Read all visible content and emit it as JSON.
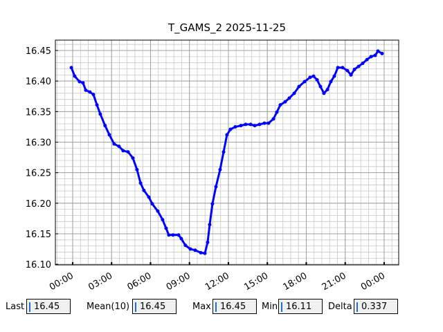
{
  "chart_data": {
    "type": "line",
    "title": "T_GAMS_2 2025-11-25",
    "x": [
      -0.1,
      0.16,
      0.53,
      0.8,
      1.01,
      1.33,
      1.6,
      1.87,
      2.13,
      2.5,
      2.83,
      3.2,
      3.57,
      3.89,
      4.27,
      4.64,
      4.96,
      5.23,
      5.49,
      5.87,
      6.13,
      6.56,
      6.93,
      7.2,
      7.41,
      7.73,
      8.16,
      8.37,
      8.69,
      9.07,
      9.44,
      9.87,
      10.19,
      10.4,
      10.56,
      10.77,
      11.04,
      11.36,
      11.63,
      11.89,
      12.16,
      12.53,
      12.96,
      13.33,
      13.71,
      14.03,
      14.4,
      14.77,
      15.09,
      15.47,
      15.73,
      16.0,
      16.37,
      16.69,
      17.07,
      17.44,
      17.87,
      18.29,
      18.56,
      18.83,
      19.09,
      19.36,
      19.63,
      19.89,
      20.16,
      20.43,
      20.8,
      21.17,
      21.44,
      21.71,
      22.03,
      22.35,
      22.67,
      22.99,
      23.31,
      23.52,
      23.84
    ],
    "series": [
      {
        "color": "#0000ff",
        "values": [
          16.422,
          16.408,
          16.399,
          16.397,
          16.385,
          16.382,
          16.378,
          16.361,
          16.346,
          16.327,
          16.312,
          16.297,
          16.293,
          16.286,
          16.284,
          16.274,
          16.255,
          16.233,
          16.221,
          16.21,
          16.199,
          16.187,
          16.173,
          16.159,
          16.148,
          16.148,
          16.148,
          16.142,
          16.131,
          16.125,
          16.123,
          16.119,
          16.118,
          16.136,
          16.165,
          16.199,
          16.227,
          16.255,
          16.284,
          16.312,
          16.321,
          16.325,
          16.327,
          16.329,
          16.329,
          16.327,
          16.329,
          16.331,
          16.331,
          16.338,
          16.349,
          16.361,
          16.366,
          16.372,
          16.38,
          16.391,
          16.399,
          16.406,
          16.408,
          16.402,
          16.391,
          16.38,
          16.386,
          16.399,
          16.408,
          16.422,
          16.422,
          16.417,
          16.41,
          16.419,
          16.424,
          16.429,
          16.435,
          16.44,
          16.442,
          16.449,
          16.445
        ]
      }
    ],
    "xlim": [
      -1.33,
      25.12
    ],
    "ylim": [
      16.099,
      16.467
    ],
    "xticks": [
      {
        "value": 0,
        "label": "00:00"
      },
      {
        "value": 3,
        "label": "03:00"
      },
      {
        "value": 6,
        "label": "06:00"
      },
      {
        "value": 9,
        "label": "09:00"
      },
      {
        "value": 12,
        "label": "12:00"
      },
      {
        "value": 15,
        "label": "15:00"
      },
      {
        "value": 18,
        "label": "18:00"
      },
      {
        "value": 21,
        "label": "21:00"
      },
      {
        "value": 24,
        "label": "00:00"
      }
    ],
    "yticks": [
      {
        "value": 16.1,
        "label": "16.10"
      },
      16.15,
      {
        "value": 16.2,
        "label": "16.20"
      },
      16.25,
      {
        "value": 16.3,
        "label": "16.30"
      },
      16.35,
      {
        "value": 16.4,
        "label": "16.40"
      },
      16.45
    ],
    "grid": true,
    "minor_grid": true
  },
  "stats": [
    {
      "label": "Last",
      "value": 16.45
    },
    {
      "label": "Mean(10)",
      "value": 16.45
    },
    {
      "label": "Max",
      "value": 16.45
    },
    {
      "label": "Min",
      "value": 16.11
    },
    {
      "label": "Delta",
      "value": 0.337
    }
  ]
}
